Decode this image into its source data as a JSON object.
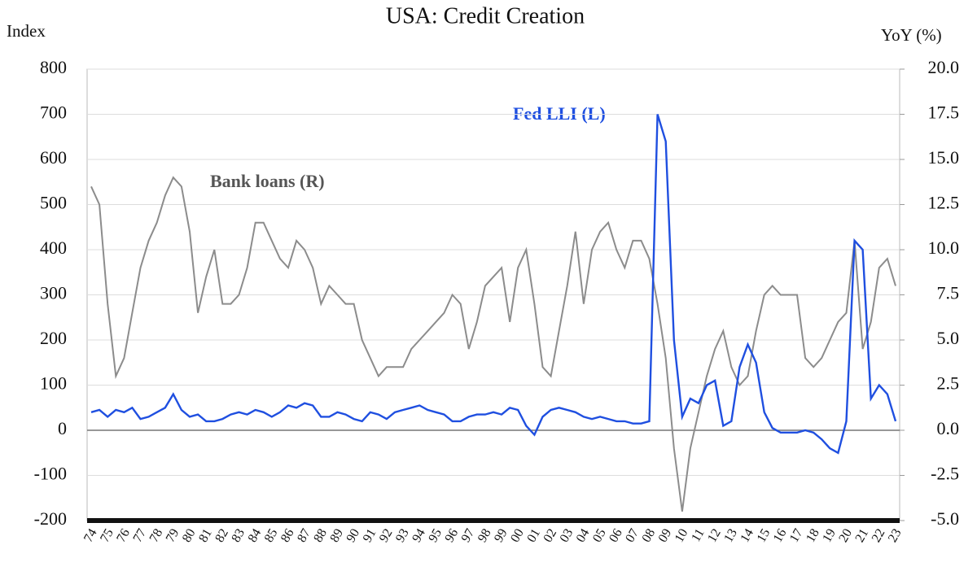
{
  "chart_data": {
    "type": "line",
    "title": "USA:  Credit Creation",
    "y_label": "Index",
    "y2_label": "YoY (%)",
    "categories": [
      "74",
      null,
      "75",
      null,
      "76",
      null,
      "77",
      null,
      "78",
      null,
      "79",
      null,
      "80",
      null,
      "81",
      null,
      "82",
      null,
      "83",
      null,
      "84",
      null,
      "85",
      null,
      "86",
      null,
      "87",
      null,
      "88",
      null,
      "89",
      null,
      "90",
      null,
      "91",
      null,
      "92",
      null,
      "93",
      null,
      "94",
      null,
      "95",
      null,
      "96",
      null,
      "97",
      null,
      "98",
      null,
      "99",
      null,
      "00",
      null,
      "01",
      null,
      "02",
      null,
      "03",
      null,
      "04",
      null,
      "05",
      null,
      "06",
      null,
      "07",
      null,
      "08",
      null,
      "09",
      null,
      "10",
      null,
      "11",
      null,
      "12",
      null,
      "13",
      null,
      "14",
      null,
      "15",
      null,
      "16",
      null,
      "17",
      null,
      "18",
      null,
      "19",
      null,
      "20",
      null,
      "21",
      null,
      "22",
      null,
      "23"
    ],
    "series": [
      {
        "name": "Bank loans (R)",
        "color": "#8c8c8c",
        "axis": "y2",
        "values": [
          13.5,
          12.5,
          7,
          3,
          4,
          6.5,
          9,
          10.5,
          11.5,
          13,
          14,
          13.5,
          11,
          6.5,
          8.5,
          10,
          7,
          7,
          7.5,
          9,
          11.5,
          11.5,
          10.5,
          9.5,
          9,
          10.5,
          10,
          9,
          7,
          8,
          7.5,
          7,
          7,
          5,
          4,
          3,
          3.5,
          3.5,
          3.5,
          4.5,
          5,
          5.5,
          6,
          6.5,
          7.5,
          7,
          4.5,
          6,
          8,
          8.5,
          9,
          6,
          9,
          10,
          7,
          3.5,
          3,
          5.5,
          8,
          11,
          7,
          10,
          11,
          11.5,
          10,
          9,
          10.5,
          10.5,
          9.5,
          7,
          4,
          -1,
          -4.5,
          -1,
          1,
          3,
          4.5,
          5.5,
          3.5,
          2.5,
          3,
          5.5,
          7.5,
          8,
          7.5,
          7.5,
          7.5,
          4,
          3.5,
          4,
          5,
          6,
          6.5,
          10.5,
          4.5,
          6,
          9,
          9.5,
          8
        ]
      },
      {
        "name": "Fed LLI (L)",
        "color": "#1f4fe0",
        "values": [
          40,
          45,
          30,
          45,
          40,
          50,
          25,
          30,
          40,
          50,
          80,
          45,
          30,
          35,
          20,
          20,
          25,
          35,
          40,
          35,
          45,
          40,
          30,
          40,
          55,
          50,
          60,
          55,
          30,
          30,
          40,
          35,
          25,
          20,
          40,
          35,
          25,
          40,
          45,
          50,
          55,
          45,
          40,
          35,
          20,
          20,
          30,
          35,
          35,
          40,
          35,
          50,
          45,
          10,
          -10,
          30,
          45,
          50,
          45,
          40,
          30,
          25,
          30,
          25,
          20,
          20,
          15,
          15,
          20,
          700,
          640,
          200,
          30,
          70,
          60,
          100,
          110,
          10,
          20,
          140,
          190,
          150,
          40,
          5,
          -5,
          -5,
          -5,
          0,
          -5,
          -20,
          -40,
          -50,
          20,
          420,
          400,
          70,
          100,
          80,
          20
        ]
      }
    ],
    "ylim": [
      -200,
      800
    ],
    "yticks": [
      -200,
      -100,
      0,
      100,
      200,
      300,
      400,
      500,
      600,
      700,
      800
    ],
    "y2lim": [
      -5,
      20
    ],
    "y2ticks": [
      {
        "value": -5,
        "label": "-5.0"
      },
      -2.5,
      {
        "value": 0,
        "label": "0.0"
      },
      2.5,
      {
        "value": 5,
        "label": "5.0"
      },
      7.5,
      {
        "value": 10,
        "label": "10.0"
      },
      12.5,
      {
        "value": 15,
        "label": "15.0"
      },
      17.5,
      {
        "value": 20,
        "label": "20.0"
      }
    ],
    "grid": true
  }
}
